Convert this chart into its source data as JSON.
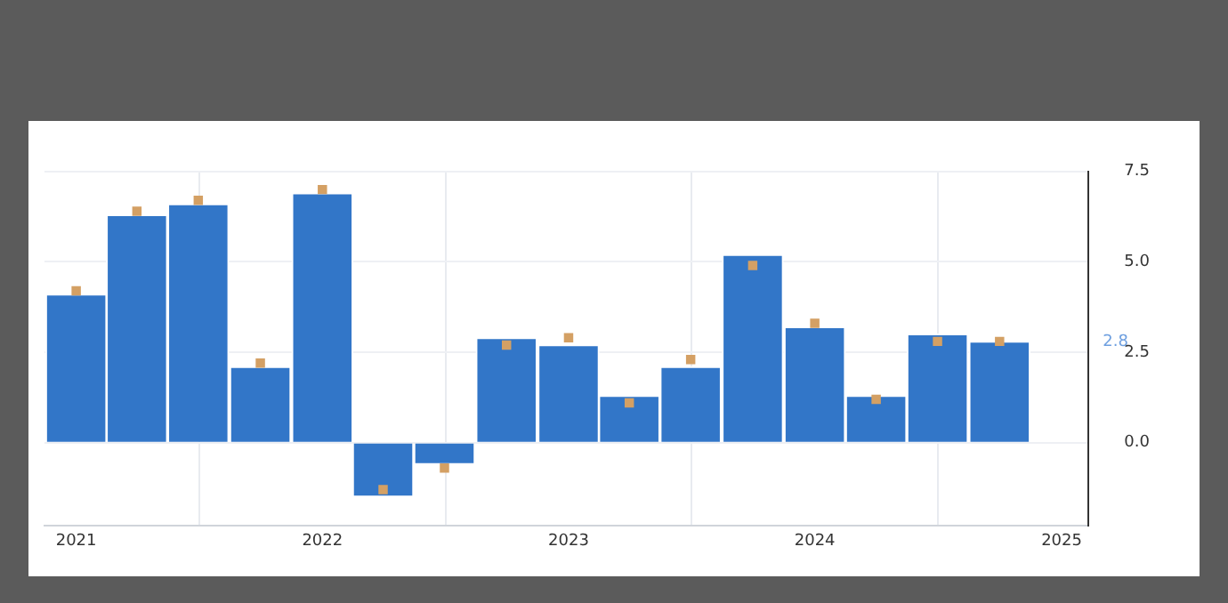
{
  "chart_data": {
    "type": "bar",
    "x": [
      "2021-01",
      "2021-04",
      "2021-07",
      "2021-10",
      "2022-01",
      "2022-04",
      "2022-07",
      "2022-10",
      "2023-01",
      "2023-04",
      "2023-07",
      "2023-10",
      "2024-01",
      "2024-04",
      "2024-07",
      "2024-10"
    ],
    "series": [
      {
        "color": "#3276c8",
        "values": [
          4.1,
          6.3,
          6.6,
          2.1,
          6.9,
          -1.5,
          -0.6,
          2.9,
          2.7,
          1.3,
          2.1,
          5.2,
          3.2,
          1.3,
          3.0,
          2.8
        ]
      },
      {
        "type": "scatter",
        "marker": "square",
        "color": "#d4a064",
        "values": [
          4.2,
          6.4,
          6.7,
          2.2,
          7.0,
          -1.3,
          -0.7,
          2.7,
          2.9,
          1.1,
          2.3,
          4.9,
          3.3,
          1.2,
          2.8,
          2.8
        ]
      }
    ],
    "xlim": [
      "2020-11-15",
      "2025-02-10"
    ],
    "xticks": [
      "2021",
      "2022",
      "2023",
      "2024",
      "2025"
    ],
    "ylim": [
      -2.3,
      7.5
    ],
    "yticks": [
      {
        "value": 0,
        "label": "0.0"
      },
      {
        "value": 2.5,
        "label": "2.5"
      },
      {
        "value": 5,
        "label": "5.0"
      },
      {
        "value": 7.5,
        "label": "7.5"
      }
    ],
    "grid": true,
    "legend": false,
    "annotations": [
      "2.8"
    ]
  }
}
